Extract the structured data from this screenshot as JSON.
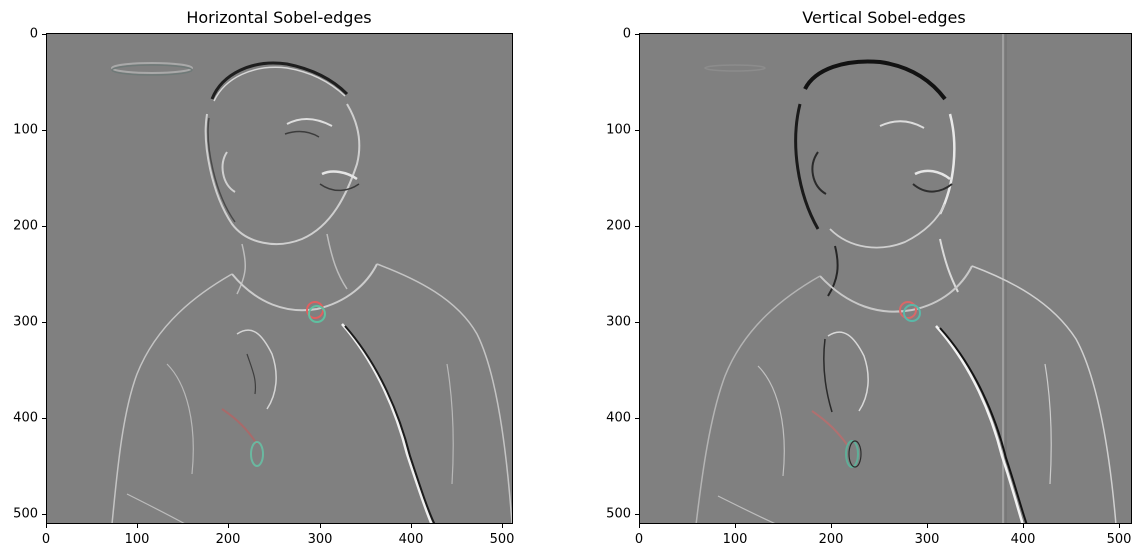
{
  "figure": {
    "panels": [
      {
        "title": "Horizontal Sobel-edges",
        "x_ticks": [
          "0",
          "100",
          "200",
          "300",
          "400",
          "500"
        ],
        "y_ticks": [
          "0",
          "100",
          "200",
          "300",
          "400",
          "500"
        ],
        "image_extent": [
          0,
          512
        ]
      },
      {
        "title": "Vertical Sobel-edges",
        "x_ticks": [
          "0",
          "100",
          "200",
          "300",
          "400",
          "500"
        ],
        "y_ticks": [
          "0",
          "100",
          "200",
          "300",
          "400",
          "500"
        ],
        "image_extent": [
          0,
          512
        ]
      }
    ],
    "colors": {
      "background_gray": "#808080",
      "edge_light": "#d8d8d8",
      "edge_dark": "#2a2a2a"
    }
  }
}
